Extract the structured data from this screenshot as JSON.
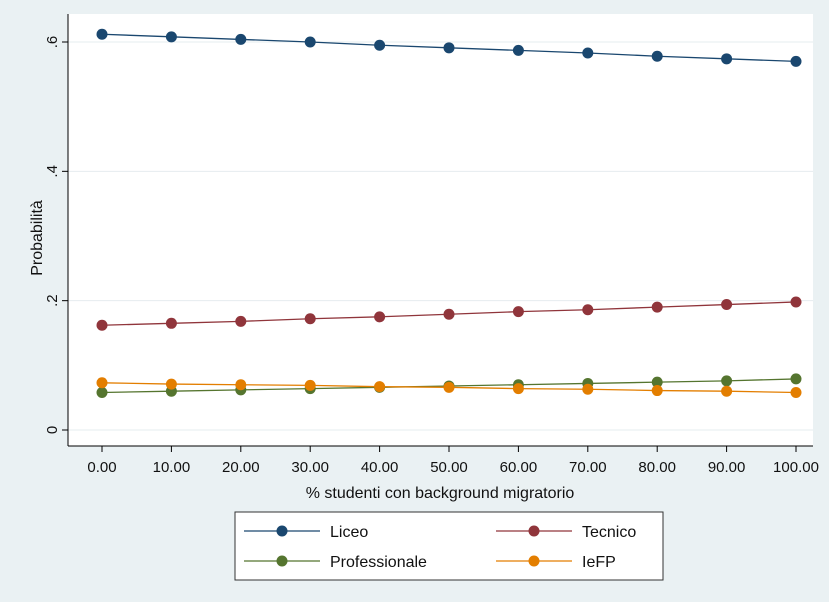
{
  "chart_data": {
    "type": "line",
    "title": "",
    "xlabel": "% studenti con background migratorio",
    "ylabel": "Probabilità",
    "xlim": [
      0,
      100
    ],
    "ylim": [
      0,
      0.6
    ],
    "x_ticks": [
      0,
      10,
      20,
      30,
      40,
      50,
      60,
      70,
      80,
      90,
      100
    ],
    "x_tick_labels": [
      "0.00",
      "10.00",
      "20.00",
      "30.00",
      "40.00",
      "50.00",
      "60.00",
      "70.00",
      "80.00",
      "90.00",
      "100.00"
    ],
    "y_ticks": [
      0,
      0.2,
      0.4,
      0.6
    ],
    "y_tick_labels": [
      "0",
      ".2",
      ".4",
      ".6"
    ],
    "grid": true,
    "legend_position": "bottom",
    "x": [
      0,
      10,
      20,
      30,
      40,
      50,
      60,
      70,
      80,
      90,
      100
    ],
    "series": [
      {
        "name": "Liceo",
        "color": "#1a476f",
        "values": [
          0.612,
          0.608,
          0.604,
          0.6,
          0.595,
          0.591,
          0.587,
          0.583,
          0.578,
          0.574,
          0.57
        ]
      },
      {
        "name": "Tecnico",
        "color": "#90353b",
        "values": [
          0.162,
          0.165,
          0.168,
          0.172,
          0.175,
          0.179,
          0.183,
          0.186,
          0.19,
          0.194,
          0.198
        ]
      },
      {
        "name": "Professionale",
        "color": "#55752f",
        "values": [
          0.058,
          0.06,
          0.062,
          0.064,
          0.066,
          0.068,
          0.07,
          0.072,
          0.074,
          0.076,
          0.079
        ]
      },
      {
        "name": "IeFP",
        "color": "#e37e00",
        "values": [
          0.073,
          0.071,
          0.07,
          0.069,
          0.067,
          0.066,
          0.064,
          0.063,
          0.061,
          0.06,
          0.058
        ]
      }
    ]
  }
}
